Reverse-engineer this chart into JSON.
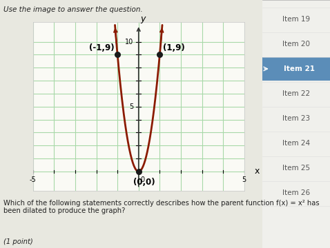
{
  "title": "Use the image to answer the question.",
  "question_text": "Which of the following statements correctly describes how the parent function f(x) = x² has\nbeen dilated to produce the graph?",
  "point_text": "(1 point)",
  "sidebar_items": [
    "Item 19",
    "Item 20",
    "Item 21",
    "Item 22",
    "Item 23",
    "Item 24",
    "Item 25",
    "Item 26"
  ],
  "active_item": "Item 21",
  "xlim": [
    -5,
    5
  ],
  "ylim_lo": -1.5,
  "ylim_hi": 11.5,
  "x_label": "x",
  "y_label": "y",
  "points": [
    [
      -1,
      9
    ],
    [
      0,
      0
    ],
    [
      1,
      9
    ]
  ],
  "point_labels": [
    "(-1,9)",
    "(0,0)",
    "(1,9)"
  ],
  "curve_color": "#8B1A00",
  "grid_color": "#A8D8A8",
  "dot_color": "#1a1a1a",
  "bg_color": "#F0F0E8",
  "outer_bg": "#E8E8E0",
  "graph_bg": "#FAFAF5",
  "sidebar_bg": "#F0F0EC",
  "active_sidebar_color": "#5B8DB8",
  "active_sidebar_text": "#FFFFFF",
  "sidebar_text_color": "#555555",
  "title_color": "#222222",
  "question_color": "#222222",
  "graph_border_color": "#CCCCCC",
  "axis_arrow_color": "#333333"
}
